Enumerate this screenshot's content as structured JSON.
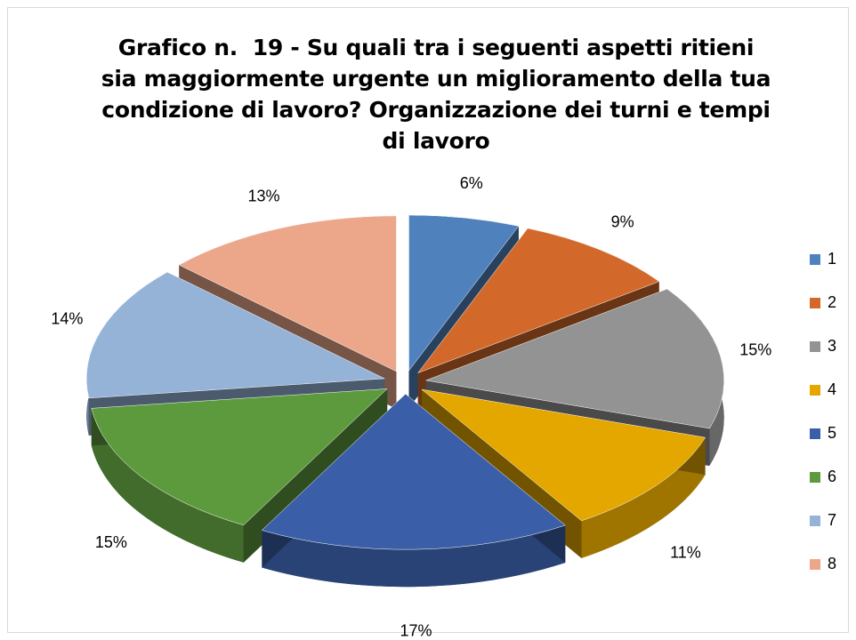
{
  "chart_data": {
    "type": "pie",
    "title": "Grafico n.  19 - Su quali tra i seguenti aspetti ritieni sia maggiormente urgente un miglioramento della tua condizione di lavoro? Organizzazione dei turni e tempi di lavoro",
    "categories": [
      "1",
      "2",
      "3",
      "4",
      "5",
      "6",
      "7",
      "8"
    ],
    "values": [
      6,
      9,
      15,
      11,
      17,
      15,
      14,
      13
    ],
    "value_labels": [
      "6%",
      "9%",
      "15%",
      "11%",
      "17%",
      "15%",
      "14%",
      "13%"
    ],
    "colors": [
      "#4f81bd",
      "#d2692a",
      "#939393",
      "#e3a700",
      "#3a5fa8",
      "#5d9a3e",
      "#95b3d7",
      "#eca78b"
    ],
    "legend": "right"
  }
}
